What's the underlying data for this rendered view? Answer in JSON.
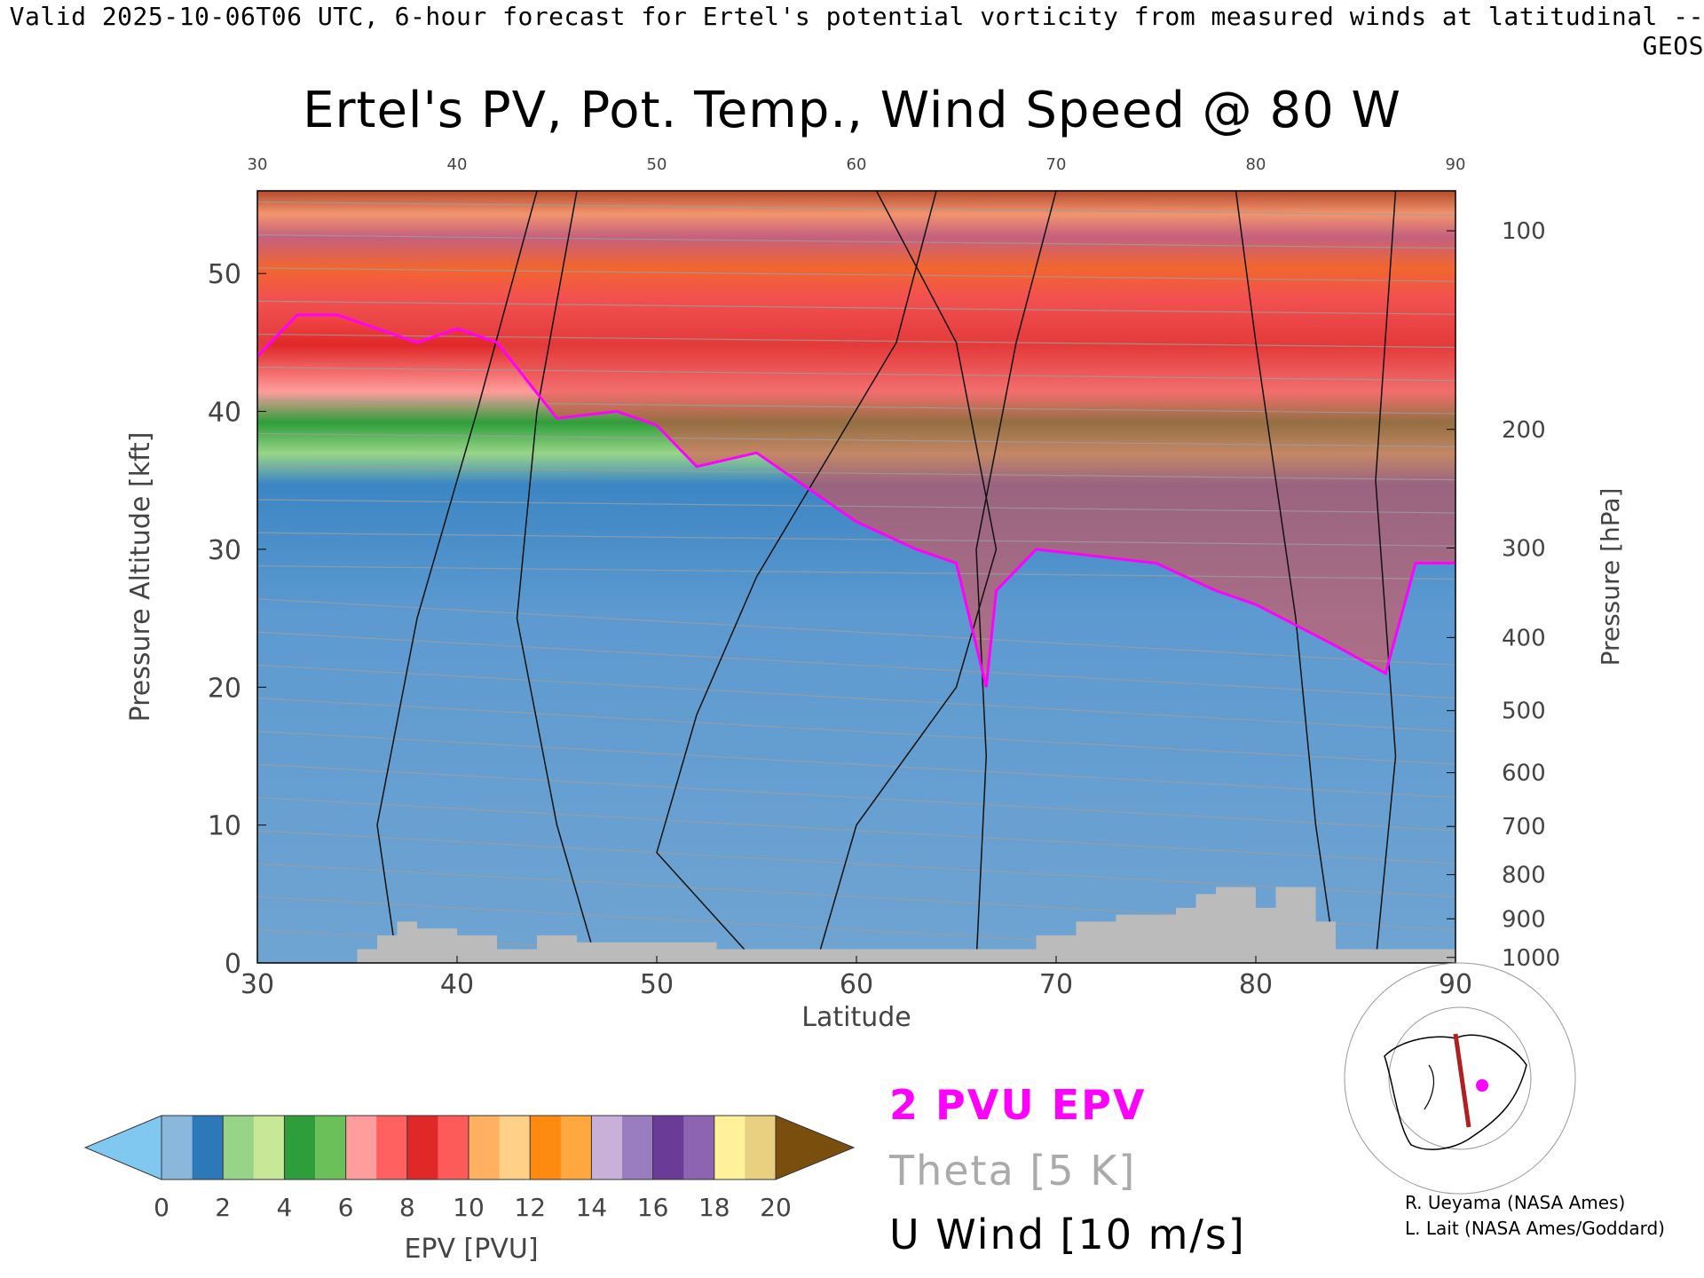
{
  "banner": "Valid 2025-10-06T06 UTC, 6-hour forecast for Ertel's potential vorticity from measured winds at latitudinal -- GEOS",
  "chart_data": {
    "type": "heatmap",
    "title": "Ertel's PV, Pot. Temp., Wind Speed @ 80 W",
    "xlabel": "Latitude",
    "ylabel_left": "Pressure Altitude [kft]",
    "ylabel_right": "Pressure [hPa]",
    "xlim": [
      30,
      90
    ],
    "ylim": [
      0,
      56
    ],
    "x_ticks": [
      30,
      40,
      50,
      60,
      70,
      80,
      90
    ],
    "x_ticks_top": [
      30,
      40,
      50,
      60,
      70,
      80,
      90
    ],
    "y_ticks": [
      0,
      10,
      20,
      30,
      40,
      50
    ],
    "pressure_ticks": [
      {
        "label": "100",
        "kft": 53.1
      },
      {
        "label": "200",
        "kft": 38.7
      },
      {
        "label": "300",
        "kft": 30.1
      },
      {
        "label": "400",
        "kft": 23.6
      },
      {
        "label": "500",
        "kft": 18.3
      },
      {
        "label": "600",
        "kft": 13.8
      },
      {
        "label": "700",
        "kft": 9.9
      },
      {
        "label": "800",
        "kft": 6.4
      },
      {
        "label": "900",
        "kft": 3.2
      },
      {
        "label": "1000",
        "kft": 0.4
      }
    ],
    "colorbar": {
      "label": "EPV [PVU]",
      "ticks": [
        0,
        2,
        4,
        6,
        8,
        10,
        12,
        14,
        16,
        18,
        20
      ],
      "under_color": "#80c8f0",
      "over_color": "#7a4e0c",
      "colors": [
        "#8ab8dc",
        "#2c78b8",
        "#98d488",
        "#c8e898",
        "#2e9e3a",
        "#6cc05a",
        "#ff9c9c",
        "#ff6060",
        "#e02828",
        "#ff5a5a",
        "#ffb060",
        "#ffd088",
        "#ff8a10",
        "#ffa840",
        "#c8b0d8",
        "#9a7cc0",
        "#6a3c98",
        "#8c64b0",
        "#fff09a",
        "#e8d080"
      ]
    },
    "tropopause_2pvu": [
      [
        30,
        44
      ],
      [
        32,
        47
      ],
      [
        34,
        47
      ],
      [
        36,
        46
      ],
      [
        38,
        45
      ],
      [
        40,
        46
      ],
      [
        42,
        45
      ],
      [
        45,
        39.5
      ],
      [
        48,
        40
      ],
      [
        50,
        39
      ],
      [
        52,
        36
      ],
      [
        55,
        37
      ],
      [
        58,
        34
      ],
      [
        60,
        32
      ],
      [
        63,
        30
      ],
      [
        65,
        29
      ],
      [
        66.5,
        20
      ],
      [
        67,
        27
      ],
      [
        69,
        30
      ],
      [
        72,
        29.5
      ],
      [
        75,
        29
      ],
      [
        78,
        27
      ],
      [
        80,
        26
      ],
      [
        84,
        23
      ],
      [
        86.5,
        21
      ],
      [
        88,
        29
      ],
      [
        90,
        29
      ]
    ],
    "terrain": [
      [
        30,
        0
      ],
      [
        35,
        0
      ],
      [
        35,
        1
      ],
      [
        36,
        1
      ],
      [
        36,
        2
      ],
      [
        37,
        2
      ],
      [
        37,
        3
      ],
      [
        38,
        3
      ],
      [
        38,
        2.5
      ],
      [
        40,
        2.5
      ],
      [
        40,
        2
      ],
      [
        42,
        2
      ],
      [
        42,
        1
      ],
      [
        44,
        1
      ],
      [
        44,
        2
      ],
      [
        46,
        2
      ],
      [
        46,
        1.5
      ],
      [
        53,
        1.5
      ],
      [
        53,
        1
      ],
      [
        69,
        1
      ],
      [
        69,
        2
      ],
      [
        71,
        2
      ],
      [
        71,
        3
      ],
      [
        73,
        3
      ],
      [
        73,
        3.5
      ],
      [
        76,
        3.5
      ],
      [
        76,
        4
      ],
      [
        77,
        4
      ],
      [
        77,
        5
      ],
      [
        78,
        5
      ],
      [
        78,
        5.5
      ],
      [
        80,
        5.5
      ],
      [
        80,
        4
      ],
      [
        81,
        4
      ],
      [
        81,
        5.5
      ],
      [
        83,
        5.5
      ],
      [
        83,
        3
      ],
      [
        84,
        3
      ],
      [
        84,
        1
      ],
      [
        90,
        1
      ],
      [
        90,
        0
      ]
    ],
    "legend": [
      "2 PVU EPV",
      "Theta [5 K]",
      "U Wind [10 m/s]"
    ],
    "legend_colors": [
      "#ff00ff",
      "#aaaaaa",
      "#000000"
    ]
  },
  "credits": [
    "R. Ueyama (NASA Ames)",
    "L. Lait (NASA Ames/Goddard)"
  ]
}
